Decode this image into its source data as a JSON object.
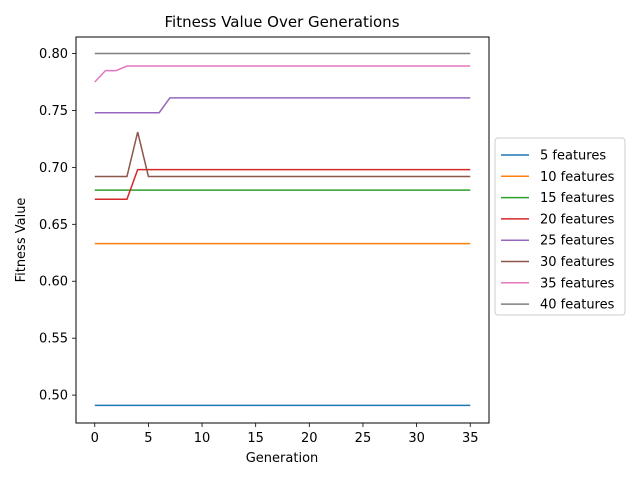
{
  "chart_data": {
    "type": "line",
    "title": "Fitness Value Over Generations",
    "xlabel": "Generation",
    "ylabel": "Fitness Value",
    "xlim": [
      -1.75,
      36.75
    ],
    "ylim": [
      0.4755,
      0.8145
    ],
    "xticks": [
      0,
      5,
      10,
      15,
      20,
      25,
      30,
      35
    ],
    "yticks": [
      0.5,
      0.55,
      0.6,
      0.65,
      0.7,
      0.75,
      0.8
    ],
    "grid": false,
    "legend_position": "right, outside plot",
    "series": [
      {
        "name": "5 features",
        "color": "#1f77b4",
        "x": [
          0,
          35
        ],
        "y": [
          0.491,
          0.491
        ]
      },
      {
        "name": "10 features",
        "color": "#ff7f0e",
        "x": [
          0,
          35
        ],
        "y": [
          0.633,
          0.633
        ]
      },
      {
        "name": "15 features",
        "color": "#2ca02c",
        "x": [
          0,
          35
        ],
        "y": [
          0.68,
          0.68
        ]
      },
      {
        "name": "20 features",
        "color": "#d62728",
        "x": [
          0,
          3,
          4,
          35
        ],
        "y": [
          0.672,
          0.672,
          0.698,
          0.698
        ]
      },
      {
        "name": "25 features",
        "color": "#9467bd",
        "x": [
          0,
          6,
          7,
          35
        ],
        "y": [
          0.748,
          0.748,
          0.761,
          0.761
        ]
      },
      {
        "name": "30 features",
        "color": "#8c564b",
        "x": [
          0,
          3,
          4,
          5,
          35
        ],
        "y": [
          0.692,
          0.692,
          0.731,
          0.692,
          0.692
        ]
      },
      {
        "name": "35 features",
        "color": "#e377c2",
        "x": [
          0,
          1,
          2,
          3,
          35
        ],
        "y": [
          0.775,
          0.785,
          0.785,
          0.789,
          0.789
        ]
      },
      {
        "name": "40 features",
        "color": "#7f7f7f",
        "x": [
          0,
          35
        ],
        "y": [
          0.8,
          0.8
        ]
      }
    ]
  }
}
